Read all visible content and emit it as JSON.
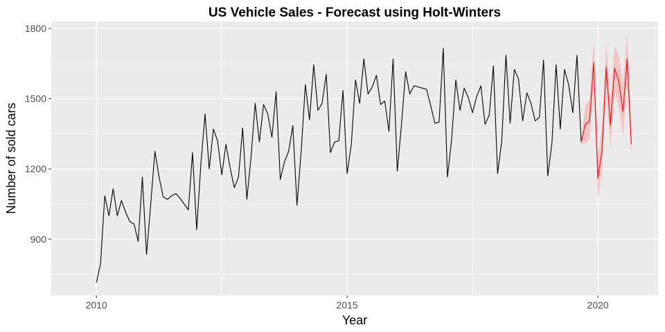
{
  "chart_data": {
    "type": "line",
    "title": "US Vehicle Sales - Forecast using Holt-Winters",
    "xlabel": "Year",
    "ylabel": "Number of sold cars",
    "xlim": [
      2009.1,
      2021.2
    ],
    "ylim": [
      660,
      1830
    ],
    "x_ticks": [
      2010,
      2015,
      2020
    ],
    "y_ticks": [
      900,
      1200,
      1500,
      1800
    ],
    "x_tick_labels": [
      "2010",
      "2015",
      "2020"
    ],
    "y_tick_labels": [
      "900",
      "1200",
      "1500",
      "1800"
    ],
    "grid": true,
    "legend": "none",
    "colors": {
      "panel": "#ebebeb",
      "grid": "#ffffff",
      "actual": "#000000",
      "forecast": "#ff0000",
      "interval": "#f4b8b8"
    },
    "series": [
      {
        "start": 2010.0,
        "step": 0.0833333,
        "values": [
          715,
          795,
          1085,
          1000,
          1115,
          1000,
          1065,
          1015,
          975,
          965,
          890,
          1165,
          835,
          1050,
          1275,
          1165,
          1080,
          1070,
          1085,
          1095,
          1075,
          1050,
          1025,
          1270,
          940,
          1220,
          1435,
          1200,
          1370,
          1320,
          1175,
          1305,
          1205,
          1120,
          1165,
          1375,
          1070,
          1250,
          1480,
          1315,
          1475,
          1435,
          1335,
          1530,
          1155,
          1230,
          1275,
          1385,
          1045,
          1275,
          1560,
          1410,
          1645,
          1450,
          1480,
          1605,
          1270,
          1315,
          1320,
          1535,
          1180,
          1305,
          1580,
          1480,
          1670,
          1520,
          1550,
          1600,
          1475,
          1490,
          1360,
          1670,
          1190,
          1390,
          1615,
          1520,
          1555,
          1550,
          1545,
          1540,
          1470,
          1395,
          1400,
          1715,
          1165,
          1325,
          1580,
          1450,
          1545,
          1505,
          1440,
          1510,
          1555,
          1390,
          1430,
          1640,
          1180,
          1320,
          1685,
          1395,
          1625,
          1585,
          1405,
          1525,
          1480,
          1405,
          1420,
          1665,
          1170,
          1310,
          1645,
          1370,
          1625,
          1560,
          1440,
          1685,
          1315
        ]
      },
      {
        "start": 2019.6667,
        "step": 0.0833333,
        "values": [
          1315,
          1390,
          1405,
          1655,
          1160,
          1280,
          1635,
          1385,
          1630,
          1575,
          1445,
          1670,
          1305
        ],
        "lower": [
          1305,
          1310,
          1325,
          1565,
          1075,
          1195,
          1545,
          1280,
          1535,
          1465,
          1335,
          1560,
          1255
        ],
        "upper": [
          1325,
          1470,
          1495,
          1745,
          1255,
          1385,
          1735,
          1490,
          1725,
          1685,
          1560,
          1780,
          1360
        ]
      }
    ]
  }
}
